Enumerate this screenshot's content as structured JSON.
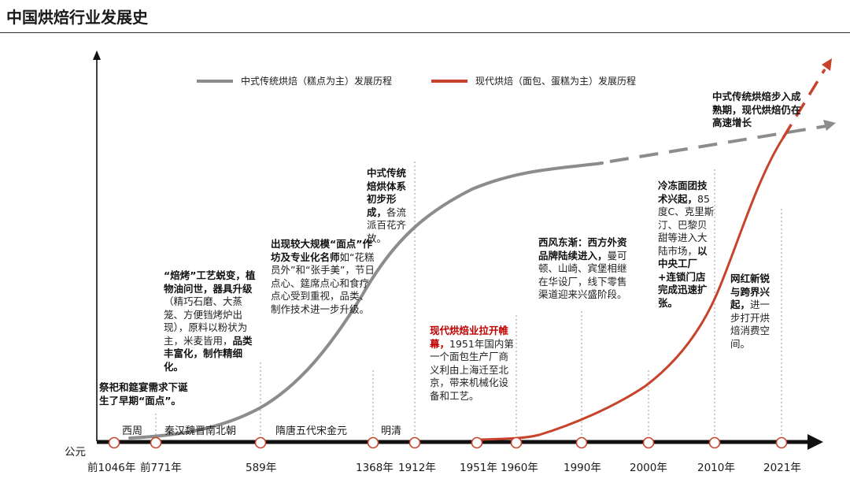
{
  "page_title": "中国烘焙行业发展史",
  "chart_data": {
    "type": "line",
    "title": "",
    "x_axis_origin_label": "公元",
    "x_ticks": [
      "前1046年",
      "前771年",
      "589年",
      "1368年",
      "1912年",
      "1951年",
      "1960年",
      "1990年",
      "2000年",
      "2010年",
      "2021年"
    ],
    "periods": [
      "西周",
      "秦汉魏晋南北朝",
      "隋唐五代宋金元",
      "明清"
    ],
    "series": [
      {
        "name": "中式传统烘焙（糕点为主）发展历程",
        "color": "#8c8c8c",
        "trend": "S-curve rising from 前1046年, slowing near 1951年, dashed projection beyond 2000年"
      },
      {
        "name": "现代烘焙（面包、蛋糕为主）发展历程",
        "color": "#c8432b",
        "trend": "starts at 1951年, accelerates after 2000年, dashed projection beyond 2021年"
      }
    ],
    "annotations": [
      {
        "lines": [
          [
            "b",
            "祭祀和筵宴需求下"
          ],
          [
            "b",
            "诞生了早期“面"
          ],
          [
            "b",
            "点”。"
          ]
        ]
      },
      {
        "lines": [
          [
            "b",
            "“焙烤”工艺蜕变，"
          ],
          [
            "b",
            "植物油问世，器具"
          ],
          [
            "b",
            "升级"
          ],
          [
            "n",
            "（精巧石磨、"
          ],
          [
            "n",
            "大蒸笼、方便铛烤"
          ],
          [
            "n",
            "炉出现），原料以"
          ],
          [
            "n",
            "粉状为主，米麦皆"
          ],
          [
            "n",
            "用，"
          ],
          [
            "b",
            "品类丰富化，"
          ],
          [
            "b",
            "制作精细化。"
          ]
        ]
      },
      {
        "lines": [
          [
            "b",
            "出现较大规模“面点”"
          ],
          [
            "b",
            "作坊及专业化名师"
          ],
          [
            "n",
            "如"
          ],
          [
            "n",
            "“花糕员外”和“张"
          ],
          [
            "n",
            "手美”，节日点心、"
          ],
          [
            "n",
            "筵席点心和食疗点心"
          ],
          [
            "n",
            "受到重视，品类、制"
          ],
          [
            "n",
            "作技术进一步升级。"
          ]
        ]
      },
      {
        "lines": [
          [
            "b",
            "中式传统"
          ],
          [
            "b",
            "焙烘体系"
          ],
          [
            "b",
            "初步形成，"
          ],
          [
            "n",
            "各流派百"
          ],
          [
            "n",
            "花齐放。"
          ]
        ]
      },
      {
        "lines": [
          [
            "r",
            "现代烘焙业拉开"
          ],
          [
            "r",
            "帷幕，"
          ],
          [
            "n",
            "1951年"
          ],
          [
            "n",
            "国内第一个面包"
          ],
          [
            "n",
            "生产厂商义利由"
          ],
          [
            "n",
            "上海迁至北京，"
          ],
          [
            "n",
            "带来机械化设备"
          ],
          [
            "n",
            "和工艺。"
          ]
        ]
      },
      {
        "lines": [
          [
            "b",
            "西风东渐：西方外资"
          ],
          [
            "b",
            "品牌陆续进入，"
          ],
          [
            "n",
            "曼可"
          ],
          [
            "n",
            "顿、山崎、宾堡相继"
          ],
          [
            "n",
            "在华设厂，线下零售"
          ],
          [
            "n",
            "渠道迎来兴盛阶段。"
          ]
        ]
      },
      {
        "lines": [
          [
            "b",
            "冷冻面团"
          ],
          [
            "b",
            "技术兴起，"
          ],
          [
            "n",
            "85度C、"
          ],
          [
            "n",
            "克里斯汀、"
          ],
          [
            "n",
            "巴黎贝甜"
          ],
          [
            "n",
            "等进入大"
          ],
          [
            "n",
            "陆市场，"
          ],
          [
            "b",
            "以中央工"
          ],
          [
            "b",
            "厂+连锁"
          ],
          [
            "b",
            "门店完成"
          ],
          [
            "b",
            "迅速扩张。"
          ]
        ]
      },
      {
        "lines": [
          [
            "b",
            "网红新锐"
          ],
          [
            "b",
            "与跨界兴"
          ],
          [
            "b",
            "起，"
          ],
          [
            "n",
            "进一"
          ],
          [
            "n",
            "步打开烘"
          ],
          [
            "n",
            "焙消费空"
          ],
          [
            "n",
            "间。"
          ]
        ]
      },
      {
        "lines": [
          [
            "b",
            "中式传统烘焙步入"
          ],
          [
            "b",
            "成熟期，现代烘焙"
          ],
          [
            "b",
            "仍在高速增长"
          ]
        ]
      }
    ]
  }
}
